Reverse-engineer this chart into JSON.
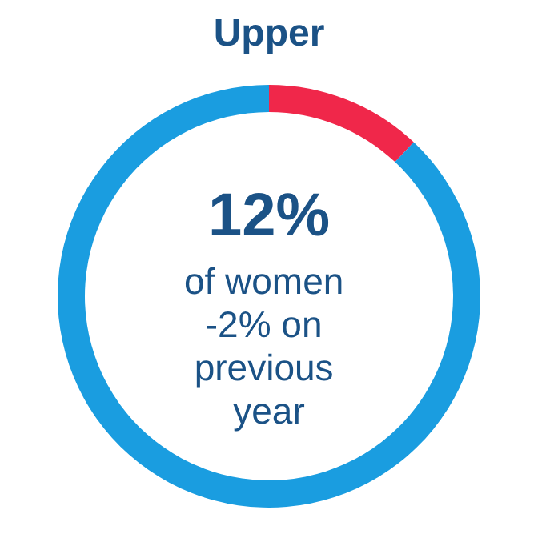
{
  "chart_data": {
    "type": "donut",
    "title": "Upper",
    "categories": [
      null,
      null
    ],
    "values": [
      12,
      88
    ],
    "colors": [
      "#f0274a",
      "#1a9de0"
    ],
    "annotations": [
      "12%",
      "of women -2% on previous year"
    ]
  }
}
